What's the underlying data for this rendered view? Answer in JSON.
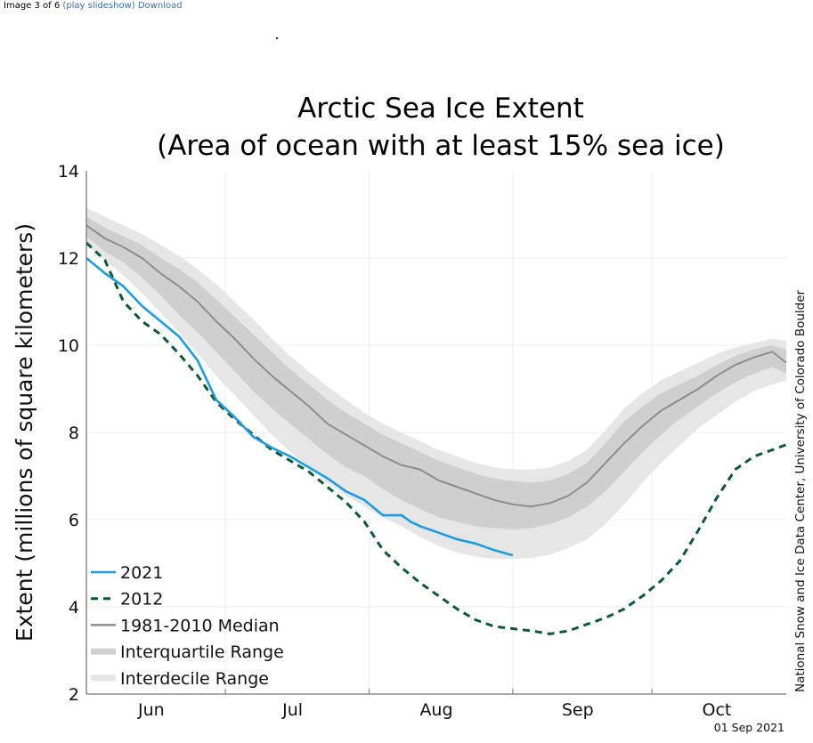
{
  "page": {
    "counter": "Image 3 of 6",
    "slideshow_link": "(play slideshow)",
    "download_link": "Download"
  },
  "chart_data": {
    "type": "line",
    "title": "Arctic Sea Ice Extent",
    "subtitle": "(Area of ocean with at least 15% sea ice)",
    "xlabel": "",
    "ylabel": "Extent (millions of square kilometers)",
    "ylim": [
      2,
      14
    ],
    "yticks": [
      2,
      4,
      6,
      8,
      10,
      12,
      14
    ],
    "x_unit": "day_of_year",
    "xlim": [
      152,
      303
    ],
    "month_boundaries": [
      152,
      182,
      213,
      244,
      274
    ],
    "month_labels": [
      {
        "label": "Jun",
        "center": 166
      },
      {
        "label": "Jul",
        "center": 196.5
      },
      {
        "label": "Aug",
        "center": 227.5
      },
      {
        "label": "Sep",
        "center": 258
      },
      {
        "label": "Oct",
        "center": 288
      }
    ],
    "grid": true,
    "legend_position": "bottom-left",
    "colors": {
      "y2021": "#1e9be0",
      "y2012": "#0b5a35",
      "median": "#8c8c8c",
      "interquartile": "#cfcfcf",
      "interdecile": "#e6e6e6"
    },
    "legend": [
      "2021",
      "2012",
      "1981-2010 Median",
      "Interquartile Range",
      "Interdecile Range"
    ],
    "series": [
      {
        "name": "2021",
        "style": "solid",
        "x": [
          152,
          156,
          160,
          164,
          168,
          172,
          176,
          180,
          184,
          188,
          192,
          196,
          200,
          204,
          208,
          212,
          216,
          220,
          222,
          224,
          228,
          232,
          236,
          240,
          244
        ],
        "values": [
          12.0,
          11.65,
          11.35,
          10.9,
          10.55,
          10.2,
          9.65,
          8.75,
          8.35,
          7.9,
          7.65,
          7.45,
          7.2,
          6.95,
          6.65,
          6.45,
          6.1,
          6.1,
          5.95,
          5.85,
          5.7,
          5.55,
          5.45,
          5.3,
          5.18
        ]
      },
      {
        "name": "2012",
        "style": "dashed",
        "x": [
          152,
          156,
          160,
          164,
          168,
          172,
          176,
          180,
          184,
          188,
          192,
          196,
          200,
          204,
          208,
          212,
          216,
          220,
          224,
          228,
          232,
          236,
          240,
          244,
          248,
          252,
          256,
          260,
          264,
          268,
          272,
          276,
          280,
          284,
          288,
          292,
          296,
          300,
          303
        ],
        "values": [
          12.35,
          11.95,
          11.0,
          10.55,
          10.25,
          9.8,
          9.3,
          8.7,
          8.3,
          7.95,
          7.6,
          7.35,
          7.1,
          6.75,
          6.4,
          5.95,
          5.3,
          4.9,
          4.55,
          4.25,
          3.95,
          3.7,
          3.55,
          3.5,
          3.45,
          3.38,
          3.45,
          3.6,
          3.75,
          3.95,
          4.25,
          4.6,
          5.05,
          5.75,
          6.5,
          7.15,
          7.45,
          7.6,
          7.72
        ]
      },
      {
        "name": "1981-2010 Median",
        "style": "solid",
        "x": [
          152,
          156,
          160,
          164,
          168,
          172,
          176,
          180,
          184,
          188,
          192,
          196,
          200,
          204,
          208,
          212,
          216,
          220,
          224,
          228,
          232,
          236,
          240,
          244,
          248,
          252,
          256,
          260,
          264,
          268,
          272,
          276,
          280,
          284,
          288,
          292,
          296,
          300,
          303
        ],
        "values": [
          12.75,
          12.45,
          12.25,
          12.0,
          11.65,
          11.35,
          11.0,
          10.55,
          10.15,
          9.7,
          9.3,
          8.95,
          8.6,
          8.2,
          7.95,
          7.7,
          7.45,
          7.25,
          7.15,
          6.9,
          6.75,
          6.6,
          6.45,
          6.35,
          6.3,
          6.38,
          6.55,
          6.85,
          7.3,
          7.75,
          8.15,
          8.5,
          8.75,
          9.0,
          9.3,
          9.55,
          9.72,
          9.85,
          9.6
        ]
      },
      {
        "name": "Interquartile Range",
        "style": "band",
        "x": [
          152,
          156,
          160,
          164,
          168,
          172,
          176,
          180,
          184,
          188,
          192,
          196,
          200,
          204,
          208,
          212,
          216,
          220,
          224,
          228,
          232,
          236,
          240,
          244,
          248,
          252,
          256,
          260,
          264,
          268,
          272,
          276,
          280,
          284,
          288,
          292,
          296,
          300,
          303
        ],
        "lower": [
          12.5,
          12.15,
          11.9,
          11.55,
          11.15,
          10.7,
          10.3,
          9.85,
          9.4,
          8.95,
          8.55,
          8.2,
          7.85,
          7.5,
          7.2,
          7.0,
          6.7,
          6.45,
          6.25,
          6.05,
          5.95,
          5.85,
          5.8,
          5.78,
          5.8,
          5.9,
          6.05,
          6.3,
          6.65,
          7.1,
          7.55,
          7.95,
          8.3,
          8.6,
          8.9,
          9.15,
          9.35,
          9.5,
          9.35
        ],
        "upper": [
          12.95,
          12.7,
          12.5,
          12.3,
          12.0,
          11.75,
          11.45,
          11.05,
          10.65,
          10.25,
          9.85,
          9.45,
          9.1,
          8.75,
          8.45,
          8.2,
          7.95,
          7.75,
          7.55,
          7.35,
          7.2,
          7.05,
          6.95,
          6.88,
          6.85,
          6.9,
          7.05,
          7.3,
          7.75,
          8.25,
          8.6,
          8.9,
          9.1,
          9.3,
          9.55,
          9.75,
          9.9,
          10.0,
          9.9
        ]
      },
      {
        "name": "Interdecile Range",
        "style": "band",
        "x": [
          152,
          156,
          160,
          164,
          168,
          172,
          176,
          180,
          184,
          188,
          192,
          196,
          200,
          204,
          208,
          212,
          216,
          220,
          224,
          228,
          232,
          236,
          240,
          244,
          248,
          252,
          256,
          260,
          264,
          268,
          272,
          276,
          280,
          284,
          288,
          292,
          296,
          300,
          303
        ],
        "lower": [
          12.3,
          11.95,
          11.6,
          11.2,
          10.75,
          10.3,
          9.8,
          9.3,
          8.85,
          8.4,
          7.95,
          7.55,
          7.2,
          6.85,
          6.55,
          6.3,
          6.05,
          5.85,
          5.6,
          5.4,
          5.25,
          5.15,
          5.1,
          5.1,
          5.12,
          5.2,
          5.35,
          5.55,
          5.9,
          6.35,
          6.85,
          7.3,
          7.7,
          8.1,
          8.4,
          8.7,
          8.95,
          9.1,
          9.2
        ],
        "upper": [
          13.15,
          12.95,
          12.75,
          12.55,
          12.3,
          12.05,
          11.75,
          11.4,
          11.0,
          10.6,
          10.15,
          9.75,
          9.4,
          9.05,
          8.75,
          8.45,
          8.2,
          8.0,
          7.8,
          7.6,
          7.45,
          7.3,
          7.2,
          7.15,
          7.15,
          7.2,
          7.35,
          7.6,
          8.05,
          8.55,
          8.9,
          9.2,
          9.4,
          9.6,
          9.8,
          9.95,
          10.05,
          10.15,
          10.1
        ]
      }
    ],
    "annotations": {
      "credit": "National Snow and Ice Data Center, University of Colorado Boulder",
      "date": "01 Sep 2021"
    }
  }
}
